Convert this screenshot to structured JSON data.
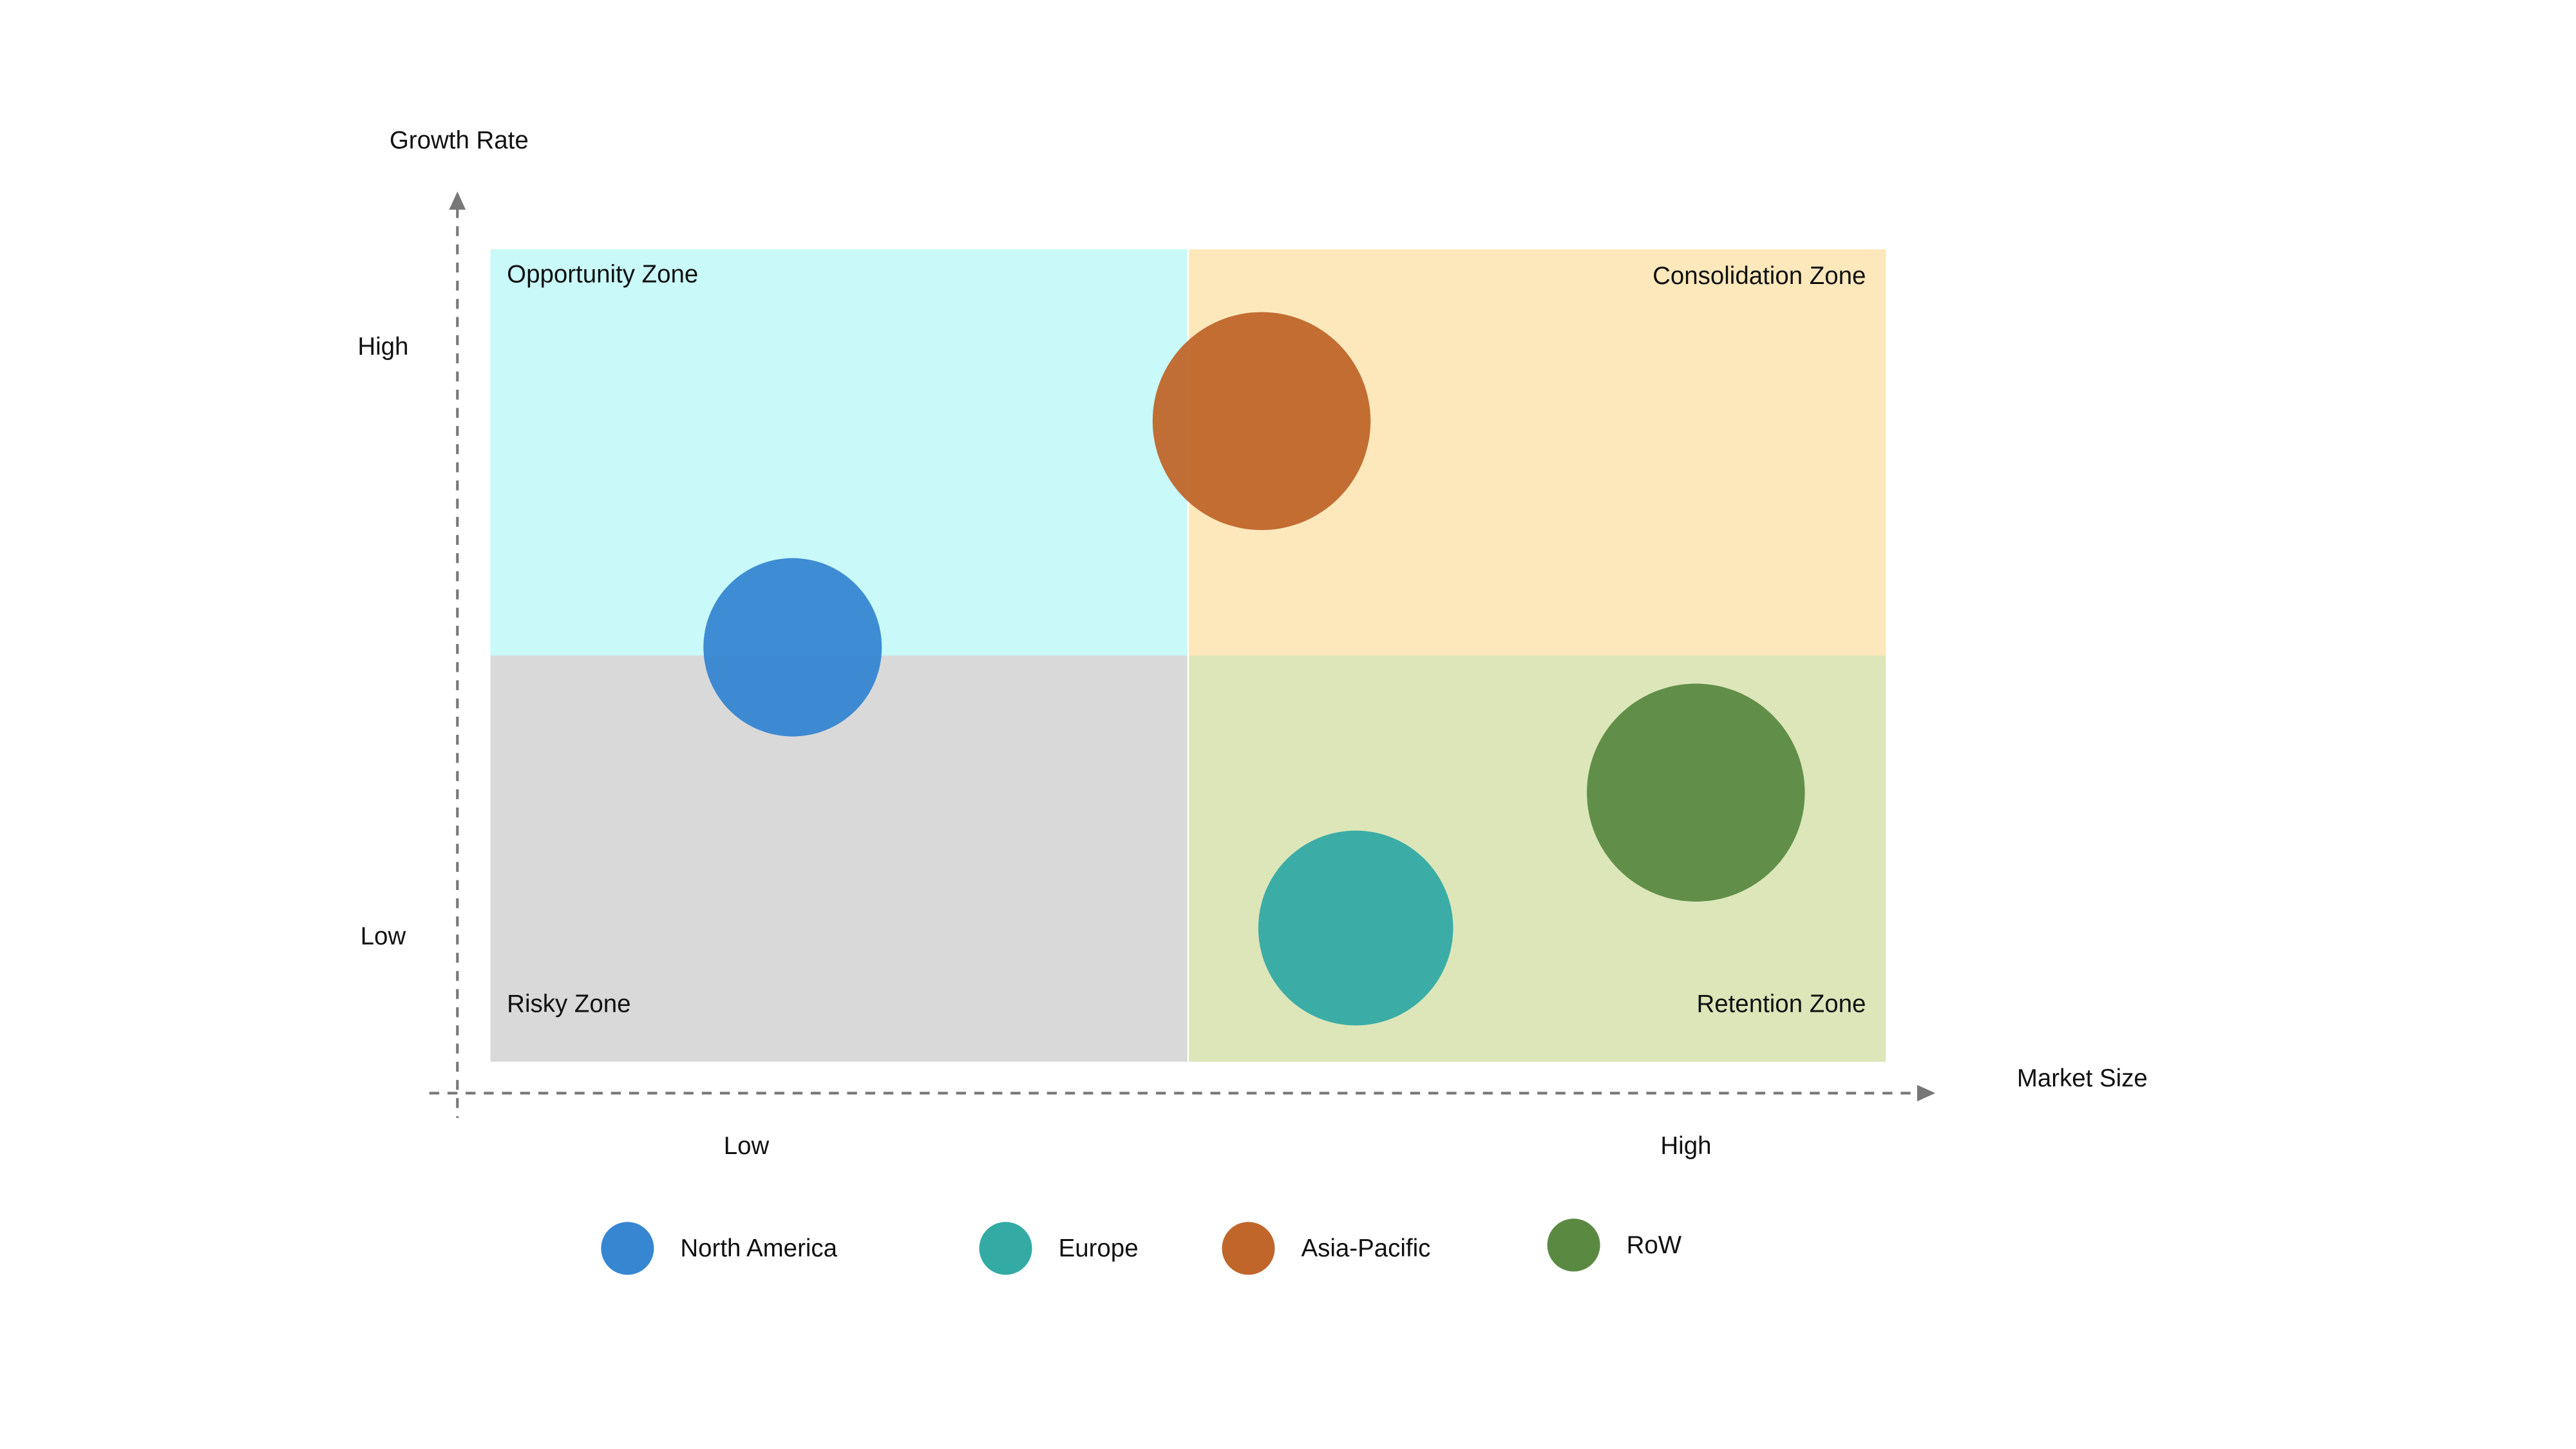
{
  "axes": {
    "y_title": "Growth Rate",
    "x_title": "Market Size",
    "y_labels": [
      "High",
      "Low"
    ],
    "x_labels": [
      "Low",
      "High"
    ]
  },
  "quadrants": [
    {
      "label": "Opportunity Zone",
      "color": "#c9f9f9"
    },
    {
      "label": "Consolidation Zone",
      "color": "#fde8bb"
    },
    {
      "label": "Risky Zone",
      "color": "#d9d9d9"
    },
    {
      "label": "Retention Zone",
      "color": "#dce6b9"
    }
  ],
  "legend": [
    {
      "name": "North America",
      "color": "#3686d2"
    },
    {
      "name": "Europe",
      "color": "#33aaa4"
    },
    {
      "name": "Asia-Pacific",
      "color": "#c0662b"
    },
    {
      "name": "RoW",
      "color": "#5a8a42"
    }
  ]
}
